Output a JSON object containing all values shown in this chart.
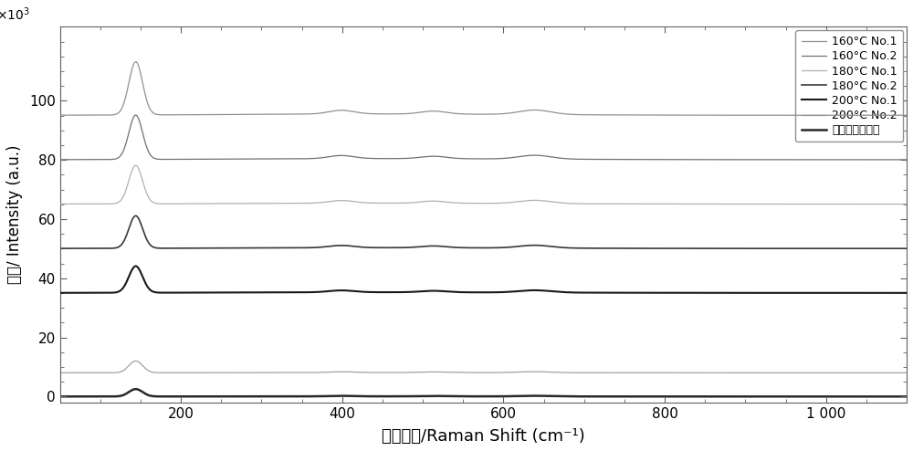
{
  "xlabel_cn": "拉曼光谱/Raman Shift (cm⁻¹)",
  "ylabel_cn": "能量/ Intensity (a.u.)",
  "xlim": [
    50,
    1100
  ],
  "ylim": [
    -2000,
    125000
  ],
  "yticks": [
    0,
    20000,
    40000,
    60000,
    80000,
    100000
  ],
  "ytick_labels": [
    "0",
    "20",
    "40",
    "60",
    "80",
    "100"
  ],
  "xticks": [
    200,
    400,
    600,
    800,
    1000
  ],
  "xtick_labels": [
    "200",
    "400",
    "600",
    "800",
    "1 000"
  ],
  "series_labels": [
    "160°C No.1",
    "160°C No.2",
    "180°C No.1",
    "180°C No.2",
    "200°C No.1",
    "200°C No.2",
    "锐鈢矿标准谱线"
  ],
  "offsets": [
    95000,
    80000,
    65000,
    50000,
    35000,
    8000,
    0
  ],
  "peak_scales": [
    0.18,
    0.15,
    0.13,
    0.11,
    0.09,
    0.04,
    0.025
  ],
  "colors": [
    "#909090",
    "#707070",
    "#b0b0b0",
    "#383838",
    "#181818",
    "#a0a0a0",
    "#282828"
  ],
  "line_widths": [
    0.9,
    0.9,
    0.9,
    1.2,
    1.5,
    0.9,
    1.8
  ],
  "background_color": "#ffffff"
}
